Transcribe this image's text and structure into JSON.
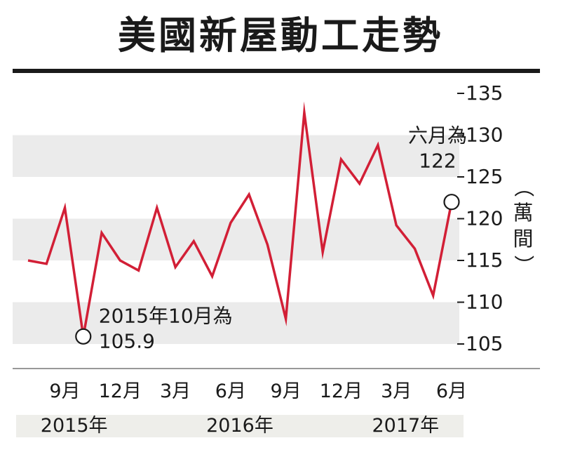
{
  "title": "美國新屋動工走勢",
  "unit_label": {
    "open": "（",
    "text": [
      "萬",
      "間"
    ],
    "close": "）"
  },
  "chart_data": {
    "type": "line",
    "title": "美國新屋動工走勢",
    "ylabel": "萬間",
    "ylim": [
      104,
      137
    ],
    "yticks": [
      105,
      110,
      115,
      120,
      125,
      130,
      135
    ],
    "x": [
      "2015-07",
      "2015-08",
      "2015-09",
      "2015-10",
      "2015-11",
      "2015-12",
      "2016-01",
      "2016-02",
      "2016-03",
      "2016-04",
      "2016-05",
      "2016-06",
      "2016-07",
      "2016-08",
      "2016-09",
      "2016-10",
      "2016-11",
      "2016-12",
      "2017-01",
      "2017-02",
      "2017-03",
      "2017-04",
      "2017-05",
      "2017-06"
    ],
    "xtick_labels": [
      {
        "x": "2015-09",
        "label": "9月"
      },
      {
        "x": "2015-12",
        "label": "12月"
      },
      {
        "x": "2016-03",
        "label": "3月"
      },
      {
        "x": "2016-06",
        "label": "6月"
      },
      {
        "x": "2016-09",
        "label": "9月"
      },
      {
        "x": "2016-12",
        "label": "12月"
      },
      {
        "x": "2017-03",
        "label": "3月"
      },
      {
        "x": "2017-06",
        "label": "6月"
      }
    ],
    "years": [
      {
        "label": "2015年",
        "from": "2015-07",
        "to": "2015-12"
      },
      {
        "label": "2016年",
        "from": "2016-01",
        "to": "2016-12"
      },
      {
        "label": "2017年",
        "from": "2017-01",
        "to": "2017-06"
      }
    ],
    "series": [
      {
        "values": [
          115.0,
          114.6,
          121.3,
          105.9,
          118.3,
          115.0,
          113.8,
          121.3,
          114.2,
          117.3,
          113.1,
          119.5,
          122.9,
          116.9,
          108.0,
          132.7,
          116.0,
          127.1,
          124.2,
          128.8,
          119.2,
          116.4,
          110.8,
          122.0
        ],
        "color": "#d21f36"
      }
    ],
    "annotations": [
      {
        "x": "2015-10",
        "y": 105.9,
        "lines": [
          "2015年10月為",
          "105.9"
        ]
      },
      {
        "x": "2017-06",
        "y": 122,
        "lines": [
          "六月為",
          "122"
        ]
      }
    ],
    "band_color": "#ebebeb",
    "grid": false
  }
}
